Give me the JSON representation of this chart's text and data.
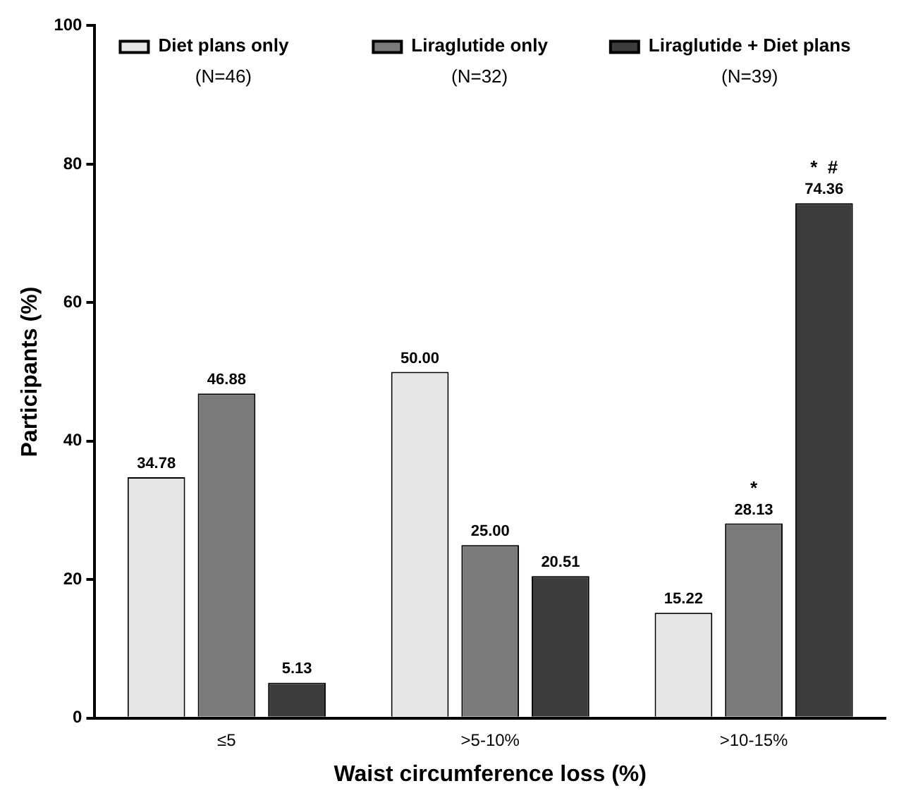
{
  "chart_data": {
    "type": "bar",
    "xlabel": "Waist circumference loss (%)",
    "ylabel": "Participants (%)",
    "categories": [
      "≤5",
      ">5-10%",
      ">10-15%"
    ],
    "series": [
      {
        "name": "Diet plans only (N=46)",
        "color": "#e6e6e6",
        "values": [
          34.78,
          50.0,
          15.22
        ],
        "value_labels": [
          "34.78",
          "50.00",
          "15.22"
        ]
      },
      {
        "name": "Liraglutide only (N=32)",
        "color": "#7a7a7a",
        "values": [
          46.88,
          25.0,
          28.13
        ],
        "value_labels": [
          "46.88",
          "25.00",
          "28.13"
        ]
      },
      {
        "name": "Liraglutide + Diet plans (N=39)",
        "color": "#3c3c3c",
        "values": [
          5.13,
          20.51,
          74.36
        ],
        "value_labels": [
          "5.13",
          "20.51",
          "74.36"
        ]
      }
    ],
    "ylim": [
      0,
      100
    ],
    "yticks": [
      0,
      20,
      40,
      60,
      80,
      100
    ],
    "grid": false,
    "legend": "top",
    "annotations": [
      {
        "text": "*",
        "x": ">10-15%",
        "y": 28.13
      },
      "*  #"
    ]
  }
}
